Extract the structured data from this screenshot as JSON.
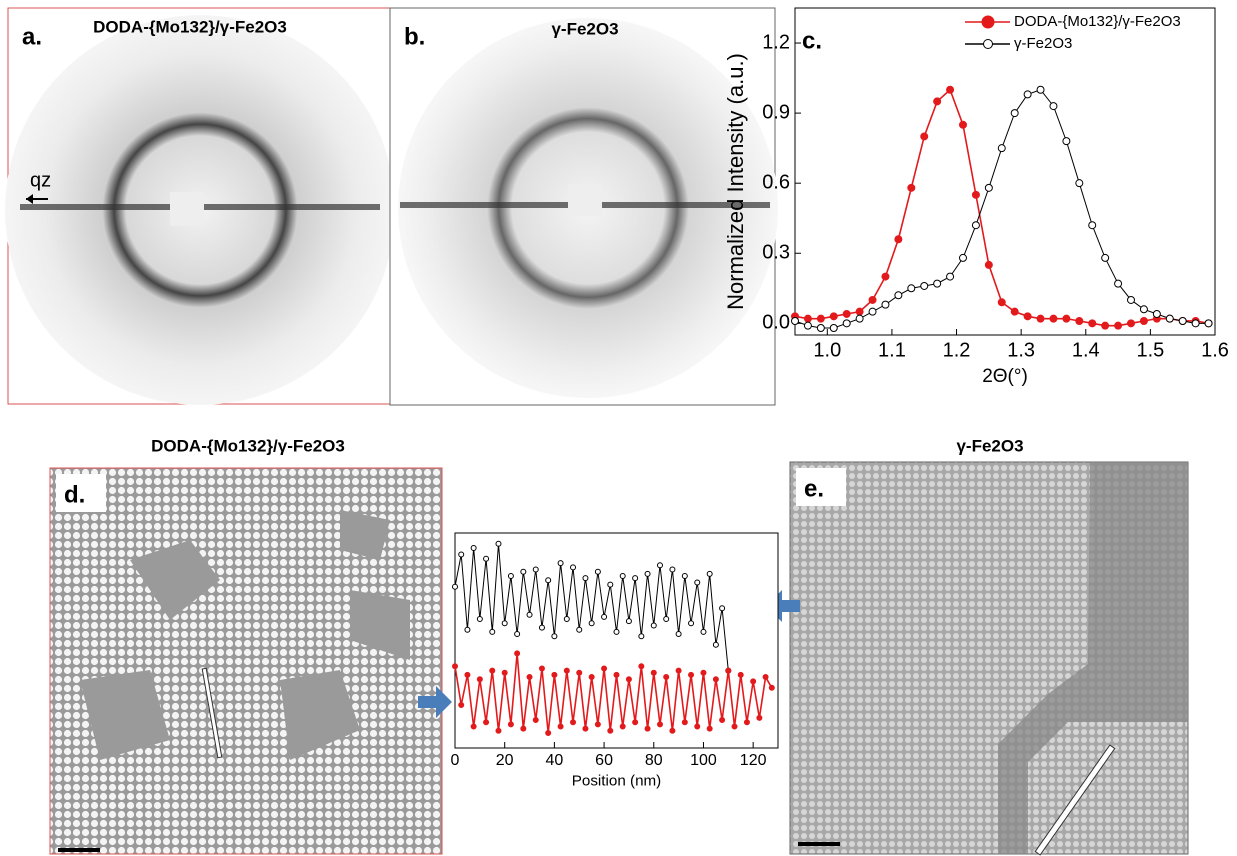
{
  "panels": {
    "a": {
      "label": "a.",
      "title": "DODA-{Mo132}/γ-Fe2O3",
      "axis_label": "qz"
    },
    "b": {
      "label": "b.",
      "title": "γ-Fe2O3"
    },
    "c": {
      "label": "c."
    },
    "d": {
      "label": "d.",
      "title": "DODA-{Mo132}/γ-Fe2O3"
    },
    "e": {
      "label": "e.",
      "title": "γ-Fe2O3"
    }
  },
  "chart_data": [
    {
      "type": "line",
      "xlabel": "2Θ(°)",
      "ylabel": "Normalized Intensity (a.u.)",
      "x": [
        0.95,
        0.97,
        0.99,
        1.01,
        1.03,
        1.05,
        1.07,
        1.09,
        1.11,
        1.13,
        1.15,
        1.17,
        1.19,
        1.21,
        1.23,
        1.25,
        1.27,
        1.29,
        1.31,
        1.33,
        1.35,
        1.37,
        1.39,
        1.41,
        1.43,
        1.45,
        1.47,
        1.49,
        1.51,
        1.53,
        1.55,
        1.57,
        1.59
      ],
      "series": [
        {
          "name": "DODA-{Mo132}/γ-Fe2O3",
          "color": "#e31a1c",
          "marker": "filled",
          "values": [
            0.03,
            0.02,
            0.02,
            0.03,
            0.04,
            0.05,
            0.1,
            0.2,
            0.36,
            0.58,
            0.8,
            0.95,
            1.0,
            0.85,
            0.55,
            0.25,
            0.09,
            0.05,
            0.03,
            0.02,
            0.02,
            0.02,
            0.01,
            0.0,
            -0.01,
            -0.01,
            0.0,
            0.01,
            0.02,
            0.02,
            0.01,
            0.01,
            0.0
          ]
        },
        {
          "name": "γ-Fe2O3",
          "color": "#000000",
          "marker": "open",
          "values": [
            0.01,
            -0.01,
            -0.02,
            -0.02,
            0.0,
            0.02,
            0.05,
            0.08,
            0.12,
            0.15,
            0.16,
            0.17,
            0.2,
            0.28,
            0.42,
            0.58,
            0.75,
            0.9,
            0.98,
            1.0,
            0.93,
            0.78,
            0.6,
            0.42,
            0.28,
            0.17,
            0.1,
            0.06,
            0.04,
            0.02,
            0.01,
            0.0,
            0.0
          ]
        }
      ],
      "xlim": [
        0.95,
        1.6
      ],
      "xticks": [
        {
          "value": 1,
          "label": "1.0"
        },
        1.1,
        1.2,
        1.3,
        1.4,
        1.5,
        1.6
      ],
      "ylim": [
        -0.05,
        1.35
      ],
      "yticks": [
        {
          "value": 0,
          "label": "0.0"
        },
        0.3,
        0.6,
        0.9,
        1.2
      ],
      "legend": "upper right"
    },
    {
      "type": "line",
      "xlabel": "Position (nm)",
      "x": [
        0,
        2.5,
        5,
        7.5,
        10,
        12.5,
        15,
        17.5,
        20,
        22.5,
        25,
        27.5,
        30,
        32.5,
        35,
        37.5,
        40,
        42.5,
        45,
        47.5,
        50,
        52.5,
        55,
        57.5,
        60,
        62.5,
        65,
        67.5,
        70,
        72.5,
        75,
        77.5,
        80,
        82.5,
        85,
        87.5,
        90,
        92.5,
        95,
        97.5,
        100,
        102.5,
        105,
        107.5,
        110,
        112.5,
        115,
        117.5,
        120,
        122.5,
        125,
        127.5
      ],
      "series": [
        {
          "color": "#000000",
          "marker": "open",
          "values": [
            7.5,
            9.0,
            5.5,
            9.3,
            6.0,
            8.8,
            5.4,
            9.5,
            5.8,
            8.0,
            5.3,
            8.2,
            6.2,
            8.3,
            5.6,
            7.8,
            5.2,
            8.6,
            6.0,
            8.4,
            5.5,
            7.9,
            5.8,
            8.2,
            6.1,
            7.6,
            5.4,
            8.0,
            5.9,
            7.9,
            5.2,
            8.1,
            5.7,
            8.5,
            6.0,
            8.3,
            5.3,
            8.0,
            5.8,
            7.7,
            5.4,
            8.1,
            4.8,
            6.5,
            3.6,
            null,
            null,
            null,
            null,
            null,
            null,
            null
          ]
        },
        {
          "color": "#e31a1c",
          "marker": "filled",
          "values": [
            3.8,
            2.0,
            3.4,
            1.0,
            3.2,
            1.2,
            3.6,
            0.8,
            3.5,
            1.1,
            4.4,
            0.9,
            3.3,
            1.3,
            3.7,
            0.7,
            3.4,
            1.0,
            3.6,
            1.2,
            3.5,
            0.9,
            3.3,
            1.1,
            3.7,
            0.8,
            3.4,
            1.0,
            3.2,
            1.2,
            3.8,
            0.9,
            3.5,
            1.1,
            3.3,
            0.8,
            3.6,
            1.2,
            3.4,
            1.0,
            3.5,
            0.9,
            3.2,
            1.3,
            3.6,
            1.0,
            3.4,
            1.2,
            3.1,
            1.4,
            3.3,
            2.8
          ]
        }
      ],
      "xlim": [
        0,
        130
      ],
      "xticks": [
        0,
        20,
        40,
        60,
        80,
        100,
        120
      ],
      "ylim": [
        0,
        10
      ]
    }
  ]
}
